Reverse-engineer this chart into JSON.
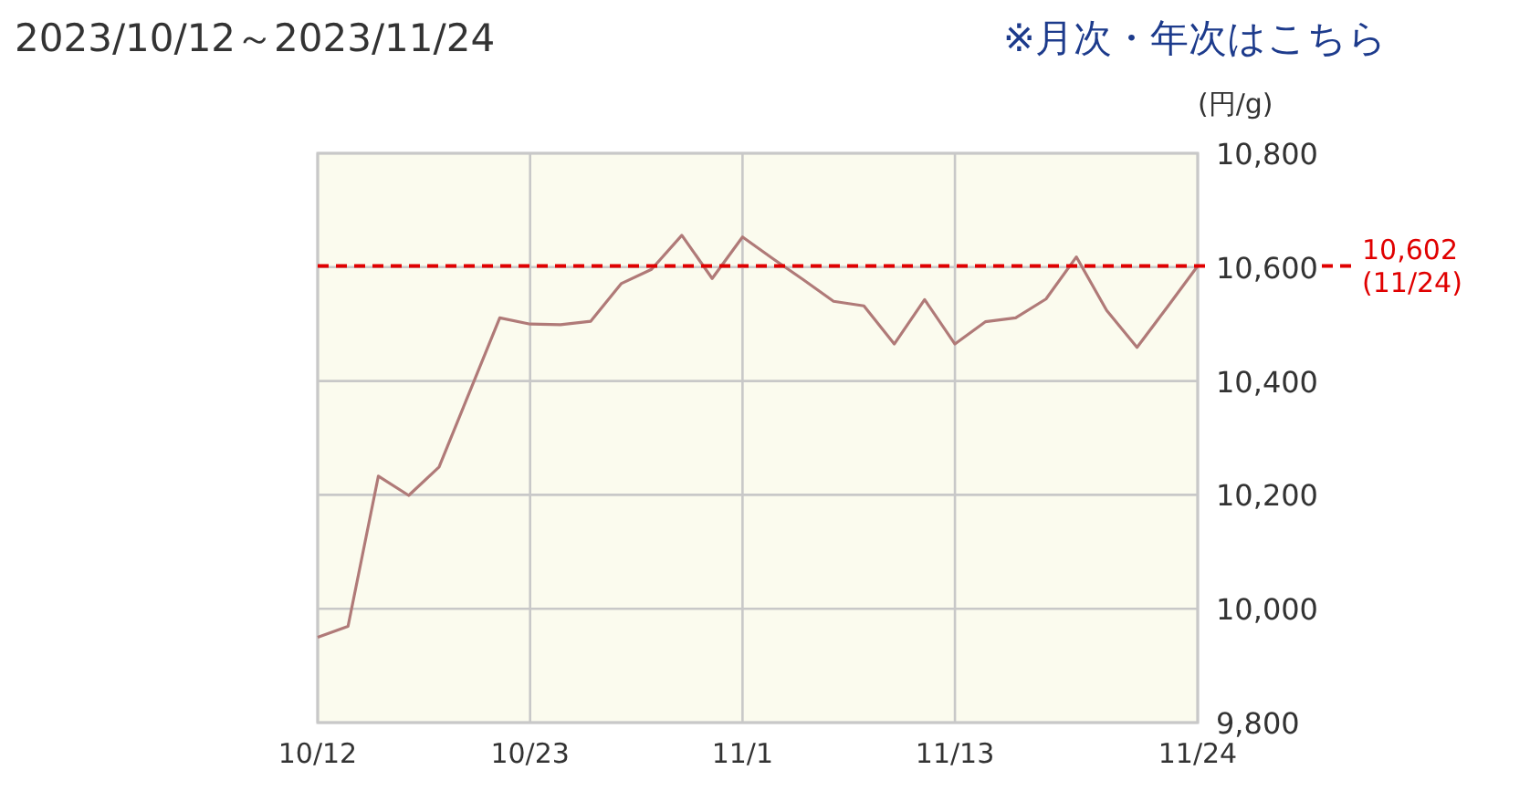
{
  "chart_data": {
    "type": "line",
    "title": "2023/10/12～2023/11/24",
    "annotations": [
      "※月次・年次はこちら"
    ],
    "ylabel": "(円/g)",
    "categories": [
      "10/12",
      null,
      null,
      null,
      null,
      null,
      null,
      "10/23",
      null,
      null,
      null,
      null,
      null,
      null,
      "11/1",
      null,
      null,
      null,
      null,
      null,
      null,
      "11/13",
      null,
      null,
      null,
      null,
      null,
      null,
      null,
      "11/24"
    ],
    "series": [
      {
        "color": "#b07a78",
        "values": [
          9950,
          9969,
          10233,
          10199,
          10249,
          10380,
          10511,
          10500,
          10499,
          10505,
          10571,
          10596,
          10656,
          10580,
          10653,
          10615,
          10578,
          10540,
          10532,
          10465,
          10543,
          10465,
          10504,
          10511,
          10544,
          10618,
          10524,
          10459,
          10530,
          10602
        ]
      }
    ],
    "ylim": [
      9800,
      10800
    ],
    "yticks": [
      {
        "value": 9800,
        "label": "9,800"
      },
      {
        "value": 10000,
        "label": "10,000"
      },
      {
        "value": 10200,
        "label": "10,200"
      },
      {
        "value": 10400,
        "label": "10,400"
      },
      {
        "value": 10600,
        "label": "10,600"
      },
      {
        "value": 10800,
        "label": "10,800"
      }
    ],
    "grid": true,
    "ref_lines": [
      {
        "axis": "y",
        "value": 10602,
        "label": "10,602 (11/24)",
        "color": "#e00000",
        "line_style": "dashed"
      }
    ]
  }
}
